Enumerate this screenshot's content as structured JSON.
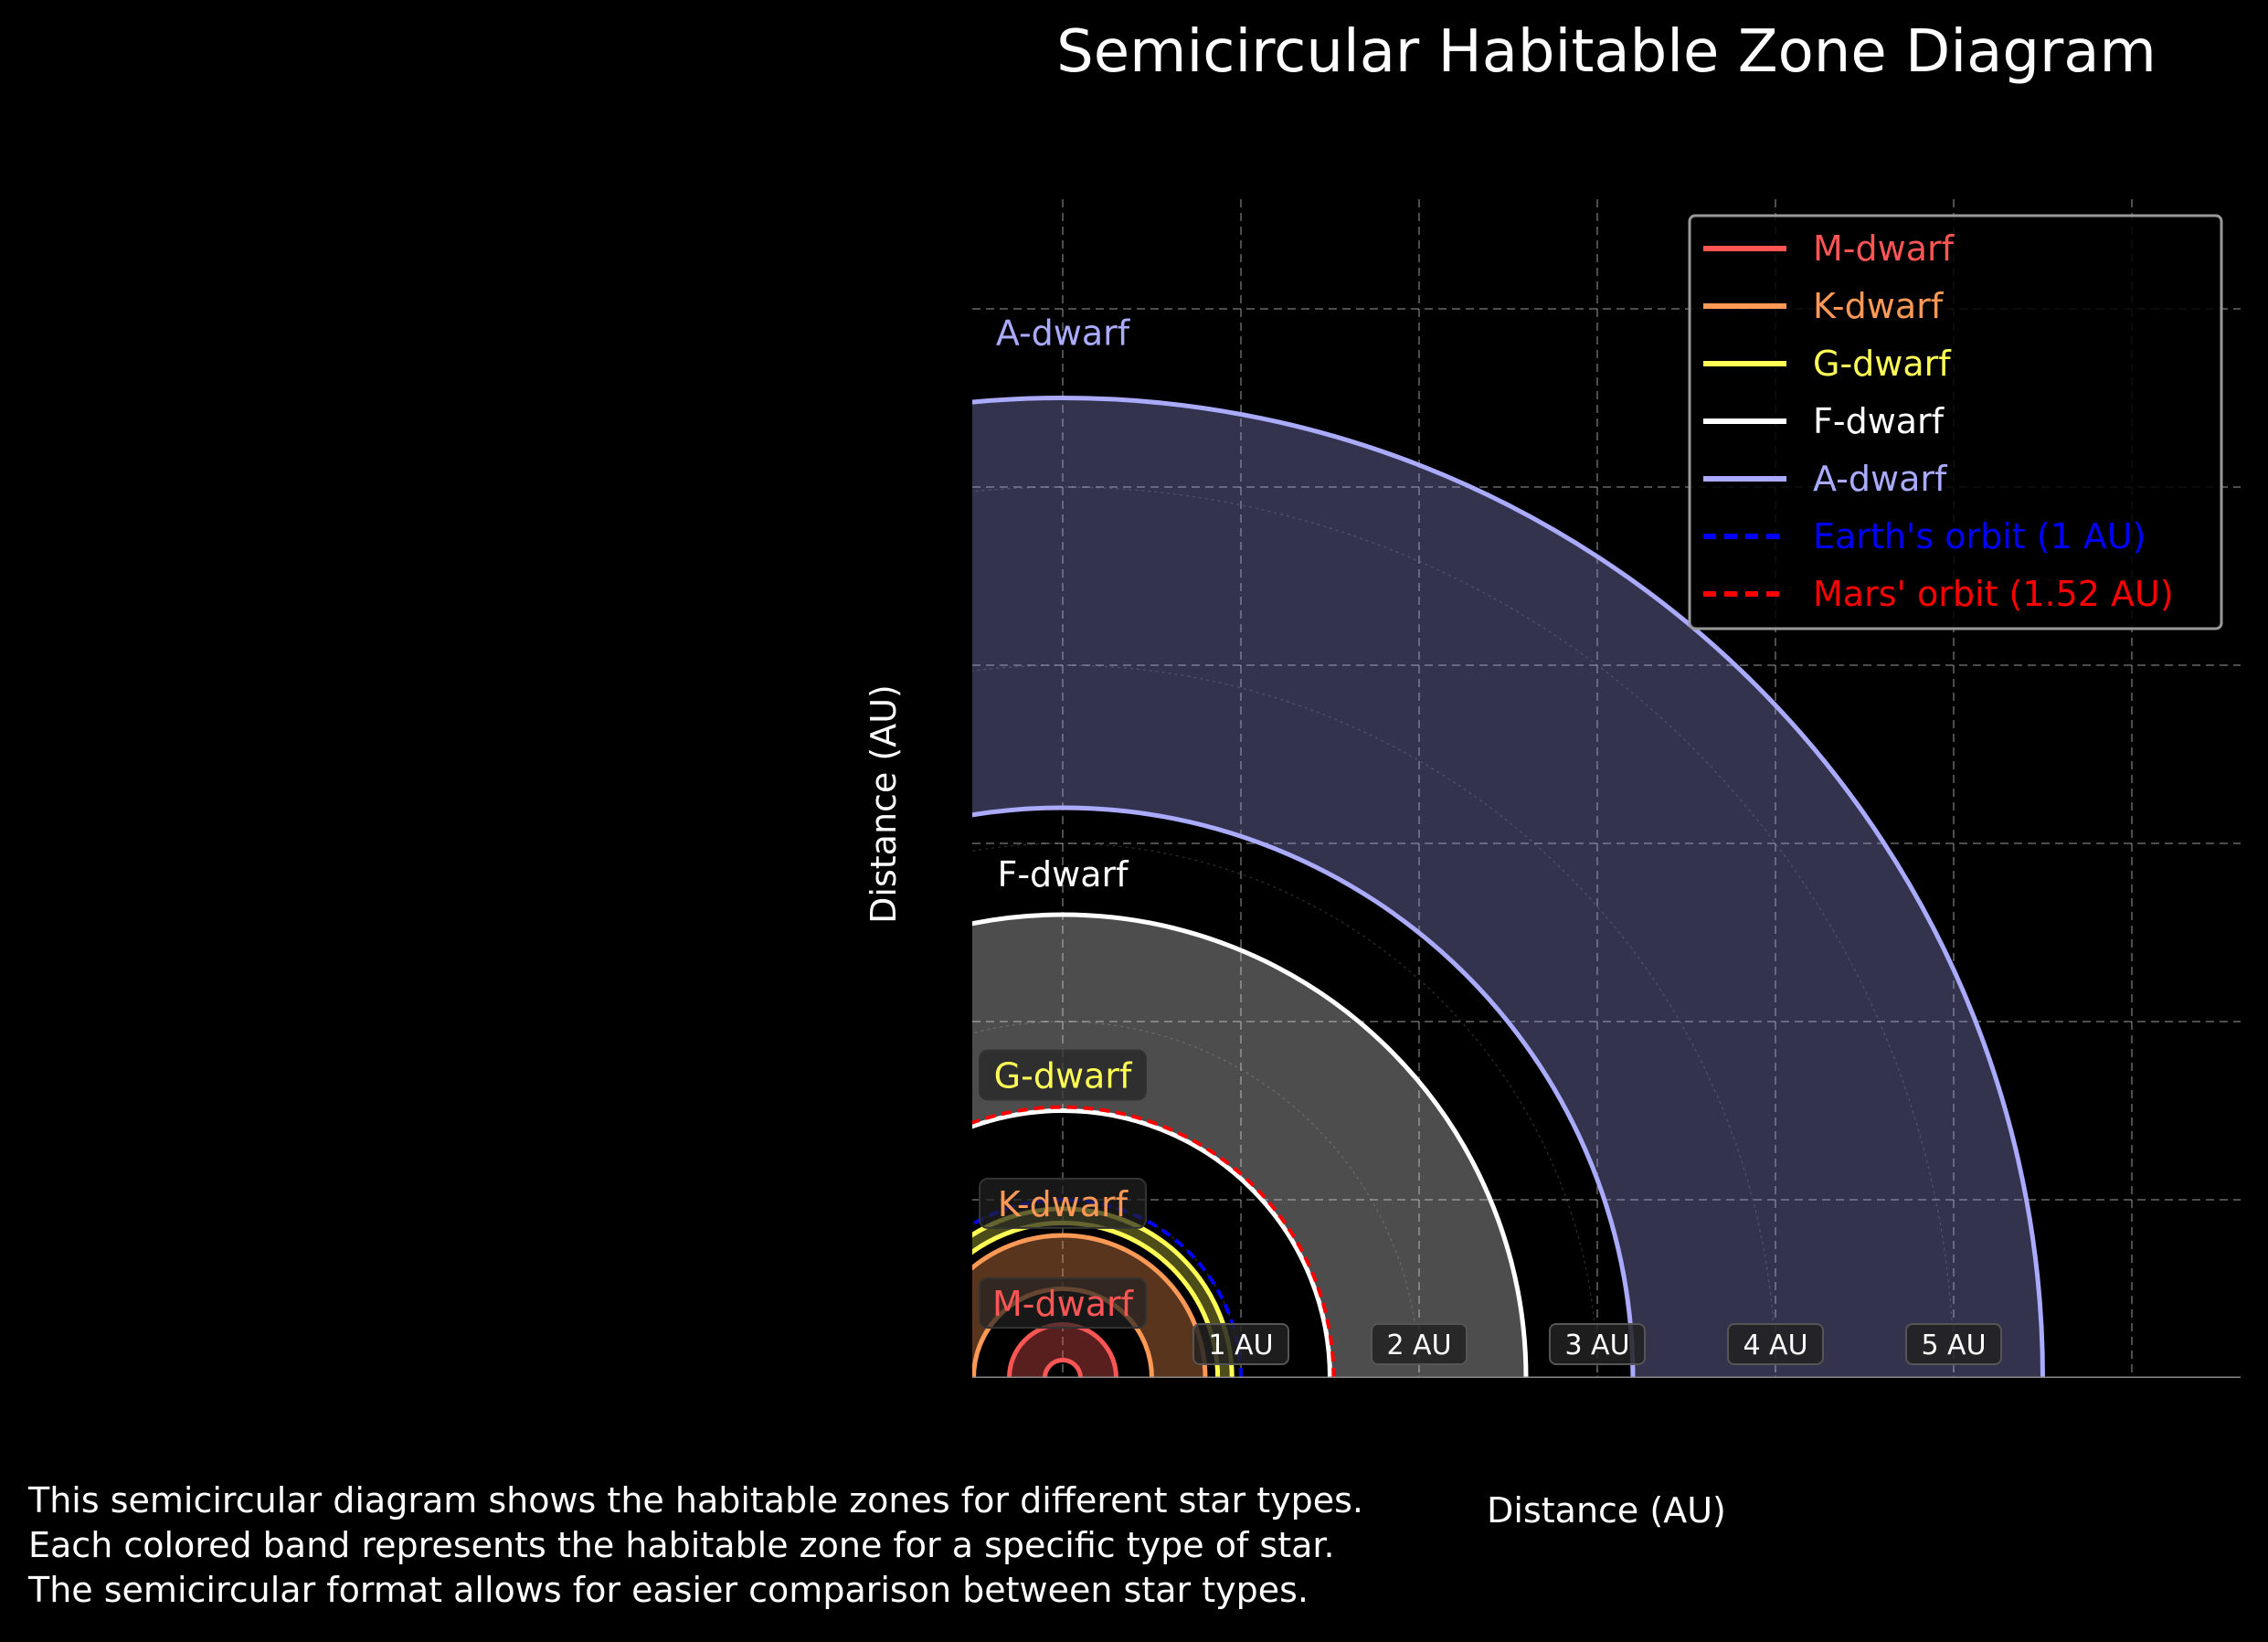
{
  "chart_data": {
    "type": "diagram",
    "title": "Semicircular Habitable Zone Diagram",
    "xlabel": "Distance (AU)",
    "ylabel": "Distance (AU)",
    "xlim": [
      -0.5,
      6.6
    ],
    "ylim": [
      -0.05,
      6.55
    ],
    "grid": true,
    "legend_position": "top-right",
    "zones": [
      {
        "name": "M-dwarf",
        "inner": 0.1,
        "outer": 0.3,
        "color": "#ff5555",
        "fill": "#ff5555",
        "fill_opacity": 0.35
      },
      {
        "name": "K-dwarf",
        "inner": 0.5,
        "outer": 0.8,
        "color": "#ff9955",
        "fill": "#ff9955",
        "fill_opacity": 0.35
      },
      {
        "name": "G-dwarf",
        "inner": 0.87,
        "outer": 0.95,
        "color": "#ffff55",
        "fill": "#ffff55",
        "fill_opacity": 0.3
      },
      {
        "name": "F-dwarf",
        "inner": 1.5,
        "outer": 2.6,
        "color": "#ffffff",
        "fill": "#ffffff",
        "fill_opacity": 0.3
      },
      {
        "name": "A-dwarf",
        "inner": 3.2,
        "outer": 5.5,
        "color": "#aaaaff",
        "fill": "#aaaaff",
        "fill_opacity": 0.3
      }
    ],
    "zone_labels": [
      {
        "text": "M-dwarf",
        "x": 0.0,
        "y": 0.42,
        "boxed": true
      },
      {
        "text": "K-dwarf",
        "x": 0.0,
        "y": 0.98,
        "boxed": true
      },
      {
        "text": "G-dwarf",
        "x": 0.0,
        "y": 1.7,
        "boxed": true
      },
      {
        "text": "F-dwarf",
        "x": 0.0,
        "y": 2.83,
        "boxed": false
      },
      {
        "text": "A-dwarf",
        "x": 0.0,
        "y": 5.87,
        "boxed": false
      }
    ],
    "reference_orbits": [
      {
        "name": "Earth's orbit (1 AU)",
        "radius": 1.0,
        "color": "#0000ff",
        "style": "dashed"
      },
      {
        "name": "Mars' orbit (1.52 AU)",
        "radius": 1.52,
        "color": "#ff0000",
        "style": "dashed"
      }
    ],
    "au_markers": [
      {
        "text": "1 AU",
        "x": 1
      },
      {
        "text": "2 AU",
        "x": 2
      },
      {
        "text": "3 AU",
        "x": 3
      },
      {
        "text": "4 AU",
        "x": 4
      },
      {
        "text": "5 AU",
        "x": 5
      }
    ],
    "legend": [
      {
        "label": "M-dwarf",
        "color": "#ff5555",
        "style": "solid"
      },
      {
        "label": "K-dwarf",
        "color": "#ff9955",
        "style": "solid"
      },
      {
        "label": "G-dwarf",
        "color": "#ffff55",
        "style": "solid"
      },
      {
        "label": "F-dwarf",
        "color": "#ffffff",
        "style": "solid"
      },
      {
        "label": "A-dwarf",
        "color": "#aaaaff",
        "style": "solid"
      },
      {
        "label": "Earth's orbit (1 AU)",
        "color": "#0000ff",
        "style": "dashed"
      },
      {
        "label": "Mars' orbit (1.52 AU)",
        "color": "#ff0000",
        "style": "dashed"
      }
    ]
  },
  "caption": {
    "line1": "This semicircular diagram shows the habitable zones for different star types.",
    "line2": "Each colored band represents the habitable zone for a specific type of star.",
    "line3": "The semicircular format allows for easier comparison between star types."
  }
}
